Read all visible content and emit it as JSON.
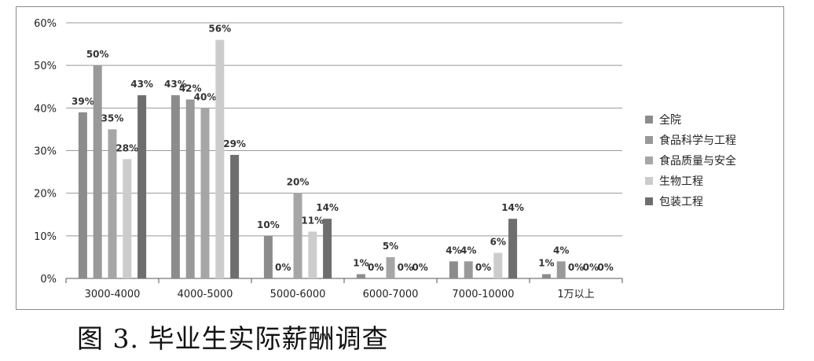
{
  "caption": "图 3. 毕业生实际薪酬调查",
  "chart_data": {
    "type": "bar",
    "categories": [
      "3000-4000",
      "4000-5000",
      "5000-6000",
      "6000-7000",
      "7000-10000",
      "1万以上"
    ],
    "series": [
      {
        "name": "全院",
        "color": "#8c8c8c",
        "values": [
          39,
          43,
          10,
          1,
          4,
          1
        ],
        "labels": [
          "39%",
          "43%",
          "10%",
          "1%",
          "4%",
          "1%"
        ]
      },
      {
        "name": "食品科学与工程",
        "color": "#999999",
        "values": [
          50,
          42,
          0,
          0,
          4,
          4
        ],
        "labels": [
          "50%",
          "42%",
          "0%",
          "0%",
          "4%",
          "4%"
        ]
      },
      {
        "name": "食品质量与安全",
        "color": "#a6a6a6",
        "values": [
          35,
          40,
          20,
          5,
          0,
          0
        ],
        "labels": [
          "35%",
          "40%",
          "20%",
          "5%",
          "0%",
          "0%"
        ]
      },
      {
        "name": "生物工程",
        "color": "#cccccc",
        "values": [
          28,
          56,
          11,
          0,
          6,
          0
        ],
        "labels": [
          "28%",
          "56%",
          "11%",
          "0%",
          "6%",
          "0%"
        ]
      },
      {
        "name": "包装工程",
        "color": "#6e6e6e",
        "values": [
          43,
          29,
          14,
          0,
          14,
          0
        ],
        "labels": [
          "43%",
          "29%",
          "14%",
          "0%",
          "14%",
          "0%"
        ]
      }
    ],
    "yticks": [
      "0%",
      "10%",
      "20%",
      "30%",
      "40%",
      "50%",
      "60%"
    ],
    "ylim": [
      0,
      60
    ],
    "grid": true,
    "legend": "right"
  }
}
